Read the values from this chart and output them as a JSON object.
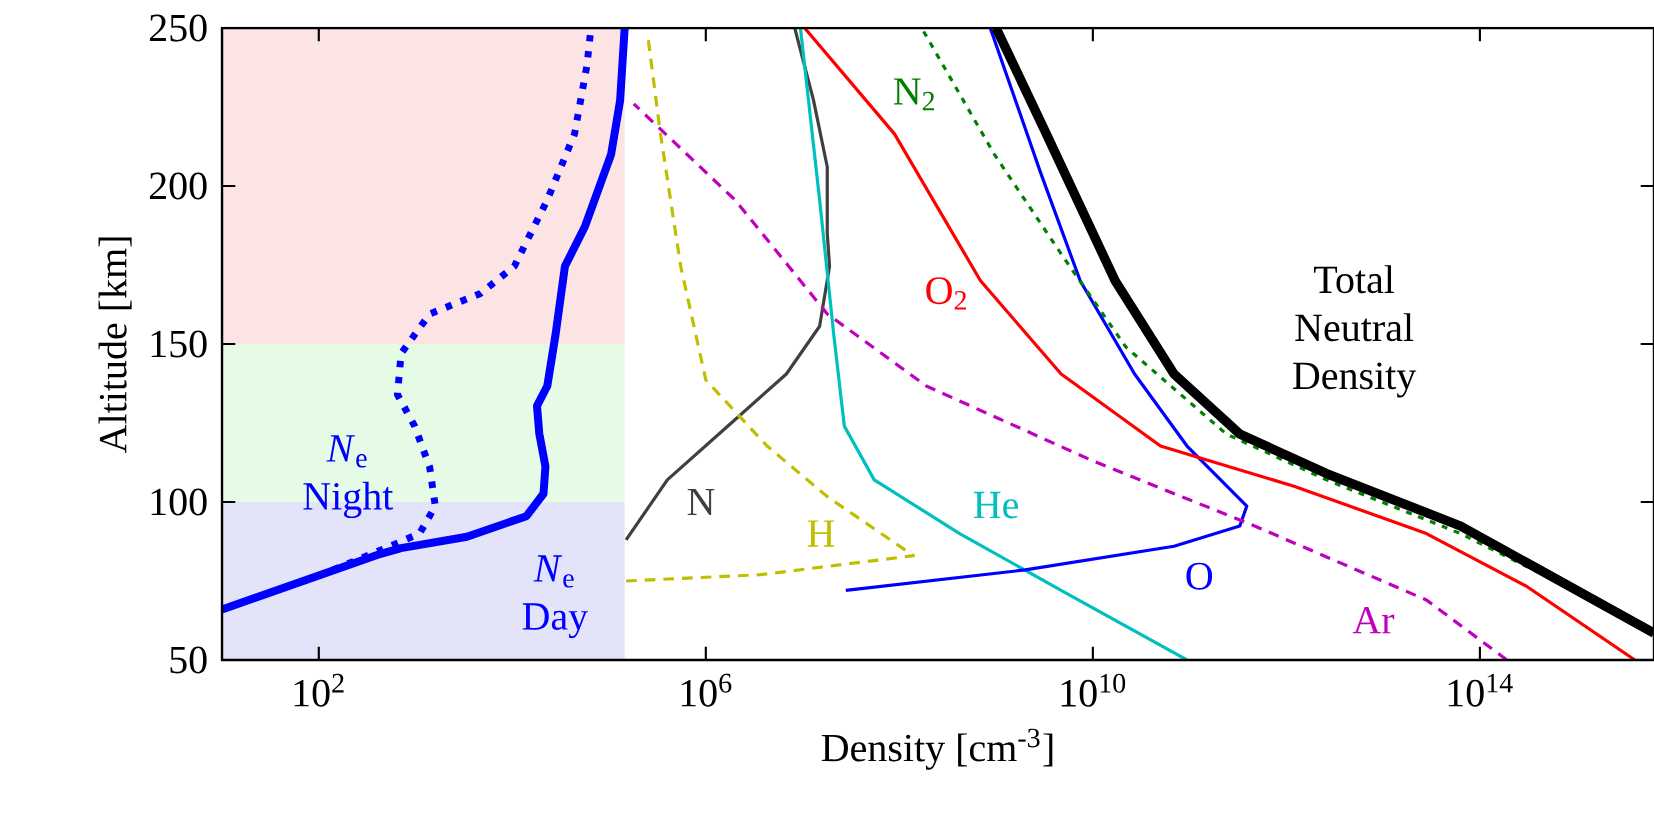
{
  "chart_data": {
    "type": "line",
    "xlabel": "Density [cm$^{-3}$]",
    "ylabel": "Altitude [km]",
    "log": "x",
    "xlim": [
      10,
      6300000000000000.0
    ],
    "ylim": [
      50,
      250
    ],
    "xticks": [
      {
        "value": 100,
        "label": "10$^{2}$"
      },
      {
        "value": 1000000.0,
        "label": "10$^{6}$"
      },
      {
        "value": 10000000000.0,
        "label": "10$^{10}$"
      },
      {
        "value": 100000000000000.0,
        "label": "10$^{14}$"
      }
    ],
    "yticks": [
      50,
      100,
      150,
      200,
      250
    ],
    "bands": [
      {
        "axis": "y",
        "from": 150,
        "to": 250,
        "color": "#fde4e4"
      },
      {
        "axis": "y",
        "from": 100,
        "to": 150,
        "color": "#e5fbe5"
      },
      {
        "axis": "y",
        "from": 50,
        "to": 100,
        "color": "#e3e3fa"
      }
    ],
    "series": [
      {
        "name": "*N*$_{e}$ Day",
        "color": "#0000ff",
        "line_style": "solid",
        "x": [
          10,
          437,
          708,
          3400.0,
          14000.0,
          21000.0,
          22000.0,
          19000.0,
          18000.0,
          23000.0,
          28000.0,
          35000.0,
          56000.0,
          105000.0,
          130000.0,
          145000.0
        ],
        "values": [
          66,
          83.6,
          85.4,
          89,
          95.5,
          102.6,
          111.2,
          121.7,
          130.4,
          136.7,
          153,
          174.6,
          187,
          210,
          227,
          250
        ]
      },
      {
        "name": "*N*$_{e}$ Night",
        "color": "#0000ff",
        "line_style": "dotted",
        "x": [
          140,
          440,
          1100,
          1600,
          1400,
          980,
          650,
          710,
          1400,
          4700,
          10500.0,
          23000.0,
          44000.0,
          59000.0,
          65000.0
        ],
        "values": [
          78.5,
          84.8,
          90,
          98.7,
          111,
          124,
          134,
          147,
          159.5,
          166,
          174.6,
          195.6,
          216.5,
          238,
          250
        ]
      },
      {
        "name": "N",
        "color": "#404040",
        "line_style": "solid",
        "x": [
          150000.0,
          400000.0,
          2000000.0,
          6800000.0,
          15000000.0,
          19000000.0,
          18000000.0,
          18000000.0,
          13000000.0,
          8300000.0
        ],
        "values": [
          88,
          107,
          126,
          140.5,
          155.6,
          174.6,
          185,
          206,
          227,
          250
        ]
      },
      {
        "name": "H",
        "color": "#bfbf00",
        "line_style": "dashed",
        "x": [
          150000.0,
          3700000.0,
          140000000.0,
          25000000.0,
          18000000.0,
          4300000.0,
          1000000.0,
          550000.0,
          340000.0,
          250000.0
        ],
        "values": [
          75,
          77,
          83,
          98.7,
          101.7,
          117.7,
          138.6,
          174.6,
          216.5,
          248
        ]
      },
      {
        "name": "He",
        "color": "#00bfbf",
        "line_style": "solid",
        "x": [
          94000000000.0,
          5400000000.0,
          420000000.0,
          55000000.0,
          27000000.0,
          21000000.0,
          15000000.0,
          9500000.0
        ],
        "values": [
          50,
          71,
          90,
          107,
          124,
          153,
          195.6,
          250
        ]
      },
      {
        "name": "O",
        "color": "#0000ff",
        "line_style": "solid",
        "x": [
          28000000.0,
          2000000000.0,
          69000000000.0,
          330000000000.0,
          390000000000.0,
          94000000000.0,
          27000000000.0,
          7400000000.0,
          2900000000.0,
          870000000.0
        ],
        "values": [
          72,
          78.5,
          86,
          92.4,
          98.7,
          117.7,
          140.5,
          170,
          204,
          250
        ]
      },
      {
        "name": "O$_{2}$",
        "color": "#ff0000",
        "line_style": "solid",
        "x": [
          4000000000000000.0,
          300000000000000.0,
          28000000000000.0,
          1200000000000.0,
          50000000000.0,
          4700000000.0,
          690000000.0,
          89000000.0,
          10500000.0
        ],
        "values": [
          50,
          73.4,
          90,
          105,
          117.7,
          140.5,
          170,
          216.5,
          250
        ]
      },
      {
        "name": "N$_{2}$",
        "color": "#008000",
        "line_style": "dotted",
        "x": [
          6300000000000000.0,
          63000000000000.0,
          2600000000000.0,
          240000000000.0,
          22000000000.0,
          4700000000.0,
          960000000.0,
          170000000.0
        ],
        "values": [
          59.5,
          90,
          107,
          121.5,
          149,
          178.5,
          210,
          250
        ]
      },
      {
        "name": "Ar",
        "color": "#bf00bf",
        "line_style": "dashed",
        "x": [
          190000000000000.0,
          28000000000000.0,
          470000000000.0,
          10000000000.0,
          190000000.0,
          18000000.0,
          2000000.0,
          180000.0
        ],
        "values": [
          50,
          69,
          92.4,
          113,
          136.7,
          159.5,
          195.6,
          226
        ]
      },
      {
        "name": "Total Neutral Density",
        "color": "#000000",
        "line_style": "solid",
        "x": [
          6300000000000000.0,
          63000000000000.0,
          2600000000000.0,
          330000000000.0,
          69000000000.0,
          17000000000.0,
          3300000000.0,
          1000000000.0
        ],
        "values": [
          58.5,
          92.4,
          109,
          121.5,
          140.5,
          170,
          216.5,
          250
        ]
      }
    ]
  }
}
